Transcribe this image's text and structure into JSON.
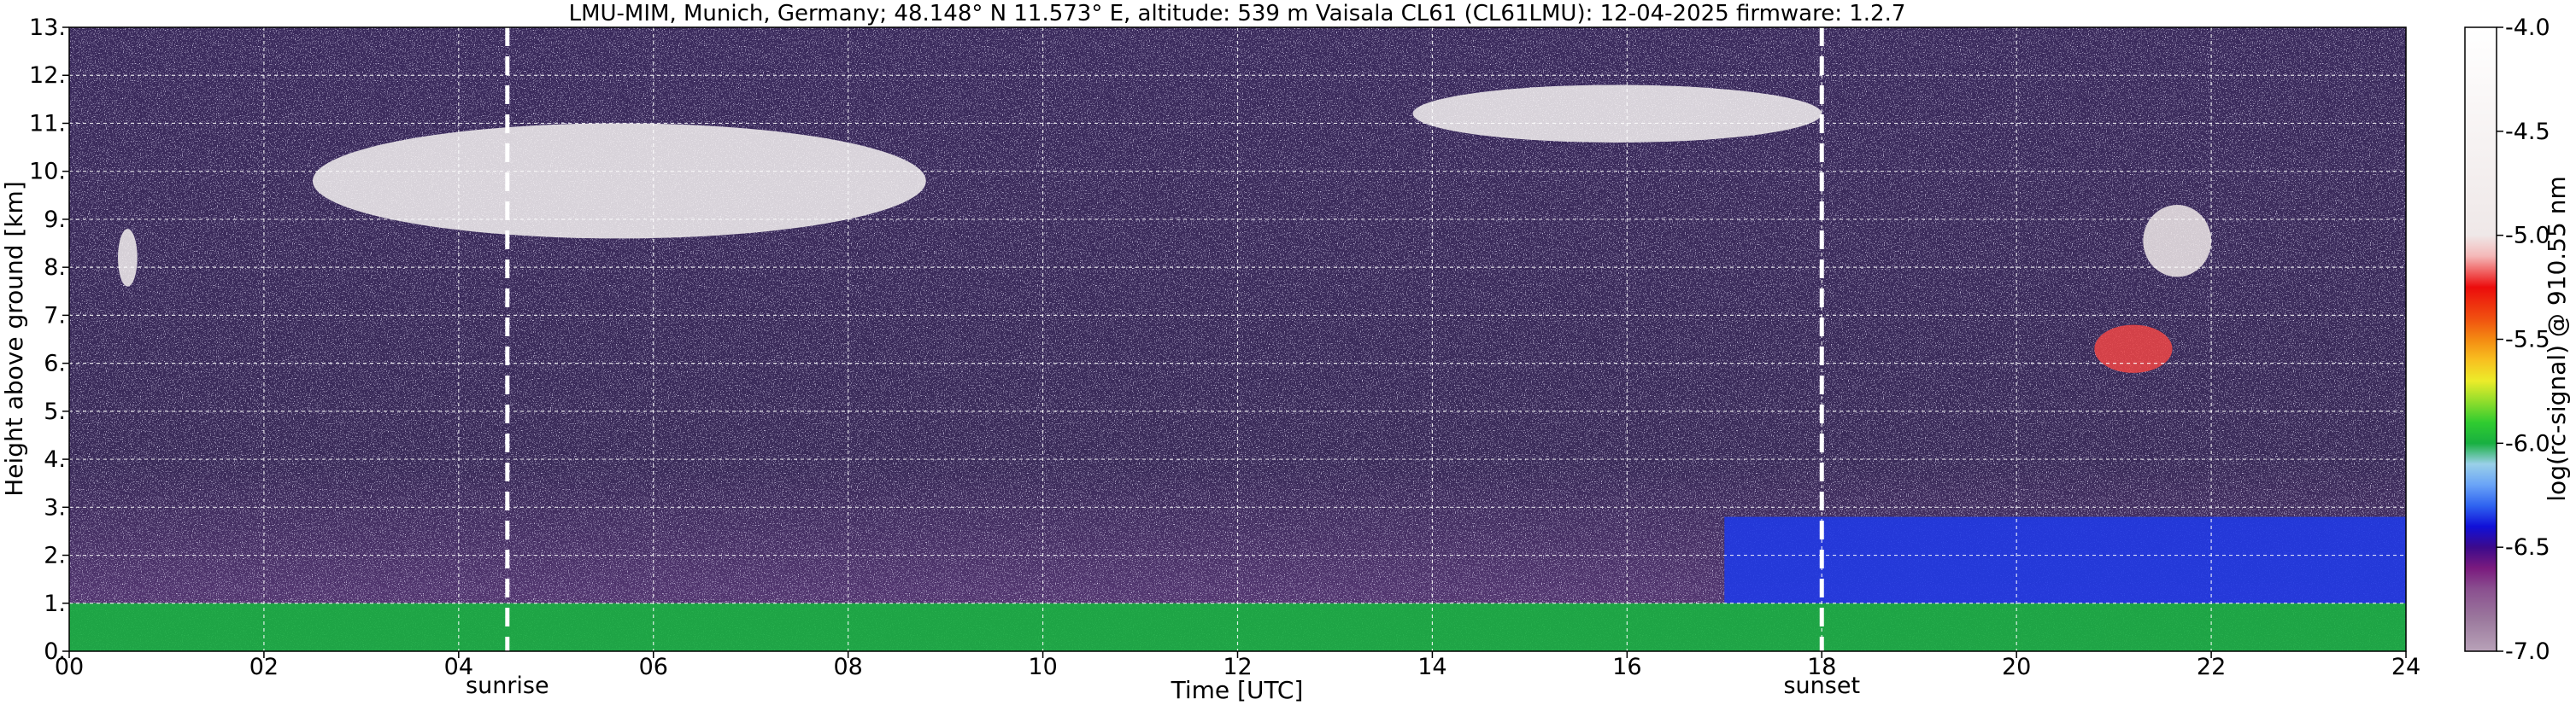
{
  "chart_data": {
    "type": "heatmap",
    "title": "LMU-MIM, Munich, Germany; 48.148° N 11.573° E, altitude: 539 m    Vaisala CL61 (CL61LMU): 12-04-2025    firmware: 1.2.7",
    "xlabel": "Time [UTC]",
    "ylabel": "Height above ground [km]",
    "xlim": [
      0,
      24
    ],
    "ylim": [
      0,
      13
    ],
    "x_ticks": [
      "00",
      "02",
      "04",
      "06",
      "08",
      "10",
      "12",
      "14",
      "16",
      "18",
      "20",
      "22",
      "24"
    ],
    "y_ticks": [
      "0.",
      "1.",
      "2.",
      "3.",
      "4.",
      "5.",
      "6.",
      "7.",
      "8.",
      "9.",
      "10.",
      "11.",
      "12.",
      "13."
    ],
    "grid": true,
    "markers": [
      {
        "label": "sunrise",
        "time": 4.5
      },
      {
        "label": "sunset",
        "time": 18.0
      }
    ],
    "colorbar": {
      "label": "log(rc-signal) @ 910.55 nm",
      "range": [
        -7.0,
        -4.0
      ],
      "ticks": [
        "-4.0",
        "-4.5",
        "-5.0",
        "-5.5",
        "-6.0",
        "-6.5",
        "-7.0"
      ],
      "stops": [
        {
          "v": -7.0,
          "c": "#b8a2b8"
        },
        {
          "v": -6.85,
          "c": "#9c7a9e"
        },
        {
          "v": -6.7,
          "c": "#8a4f8f"
        },
        {
          "v": -6.6,
          "c": "#7a1a7e"
        },
        {
          "v": -6.5,
          "c": "#3c0a8c"
        },
        {
          "v": -6.4,
          "c": "#1010d8"
        },
        {
          "v": -6.3,
          "c": "#2f63f0"
        },
        {
          "v": -6.2,
          "c": "#6aa4f7"
        },
        {
          "v": -6.1,
          "c": "#9ad0e8"
        },
        {
          "v": -6.0,
          "c": "#18b040"
        },
        {
          "v": -5.9,
          "c": "#30cc30"
        },
        {
          "v": -5.8,
          "c": "#90dd2c"
        },
        {
          "v": -5.7,
          "c": "#ecec2a"
        },
        {
          "v": -5.6,
          "c": "#f8c020"
        },
        {
          "v": -5.5,
          "c": "#f48a12"
        },
        {
          "v": -5.4,
          "c": "#f05010"
        },
        {
          "v": -5.25,
          "c": "#ec0c0c"
        },
        {
          "v": -5.1,
          "c": "#f4b8b8"
        },
        {
          "v": -5.0,
          "c": "#efe8e8"
        },
        {
          "v": -4.0,
          "c": "#ffffff"
        }
      ]
    },
    "features": [
      {
        "name": "green boundary layer",
        "t0": 0,
        "t1": 24,
        "h0": 0.0,
        "h1": 1.0,
        "v": -6.0
      },
      {
        "name": "blue residual layer (evening)",
        "t0": 17,
        "t1": 24,
        "h0": 1.0,
        "h1": 2.8,
        "v": -6.35
      },
      {
        "name": "cirrus morning",
        "t0": 2.5,
        "t1": 8.8,
        "h0": 8.6,
        "h1": 11.0,
        "v": -4.6
      },
      {
        "name": "cirrus afternoon",
        "t0": 13.8,
        "t1": 18.0,
        "h0": 10.6,
        "h1": 11.8,
        "v": -4.6
      },
      {
        "name": "cloud near 00:30",
        "t0": 0.5,
        "t1": 0.7,
        "h0": 7.6,
        "h1": 8.8,
        "v": -4.8
      },
      {
        "name": "cloud near 22:00",
        "t0": 21.3,
        "t1": 22.0,
        "h0": 7.8,
        "h1": 9.3,
        "v": -5.0
      },
      {
        "name": "cloud near 21:00",
        "t0": 20.8,
        "t1": 21.6,
        "h0": 5.8,
        "h1": 6.8,
        "v": -5.2
      }
    ]
  }
}
